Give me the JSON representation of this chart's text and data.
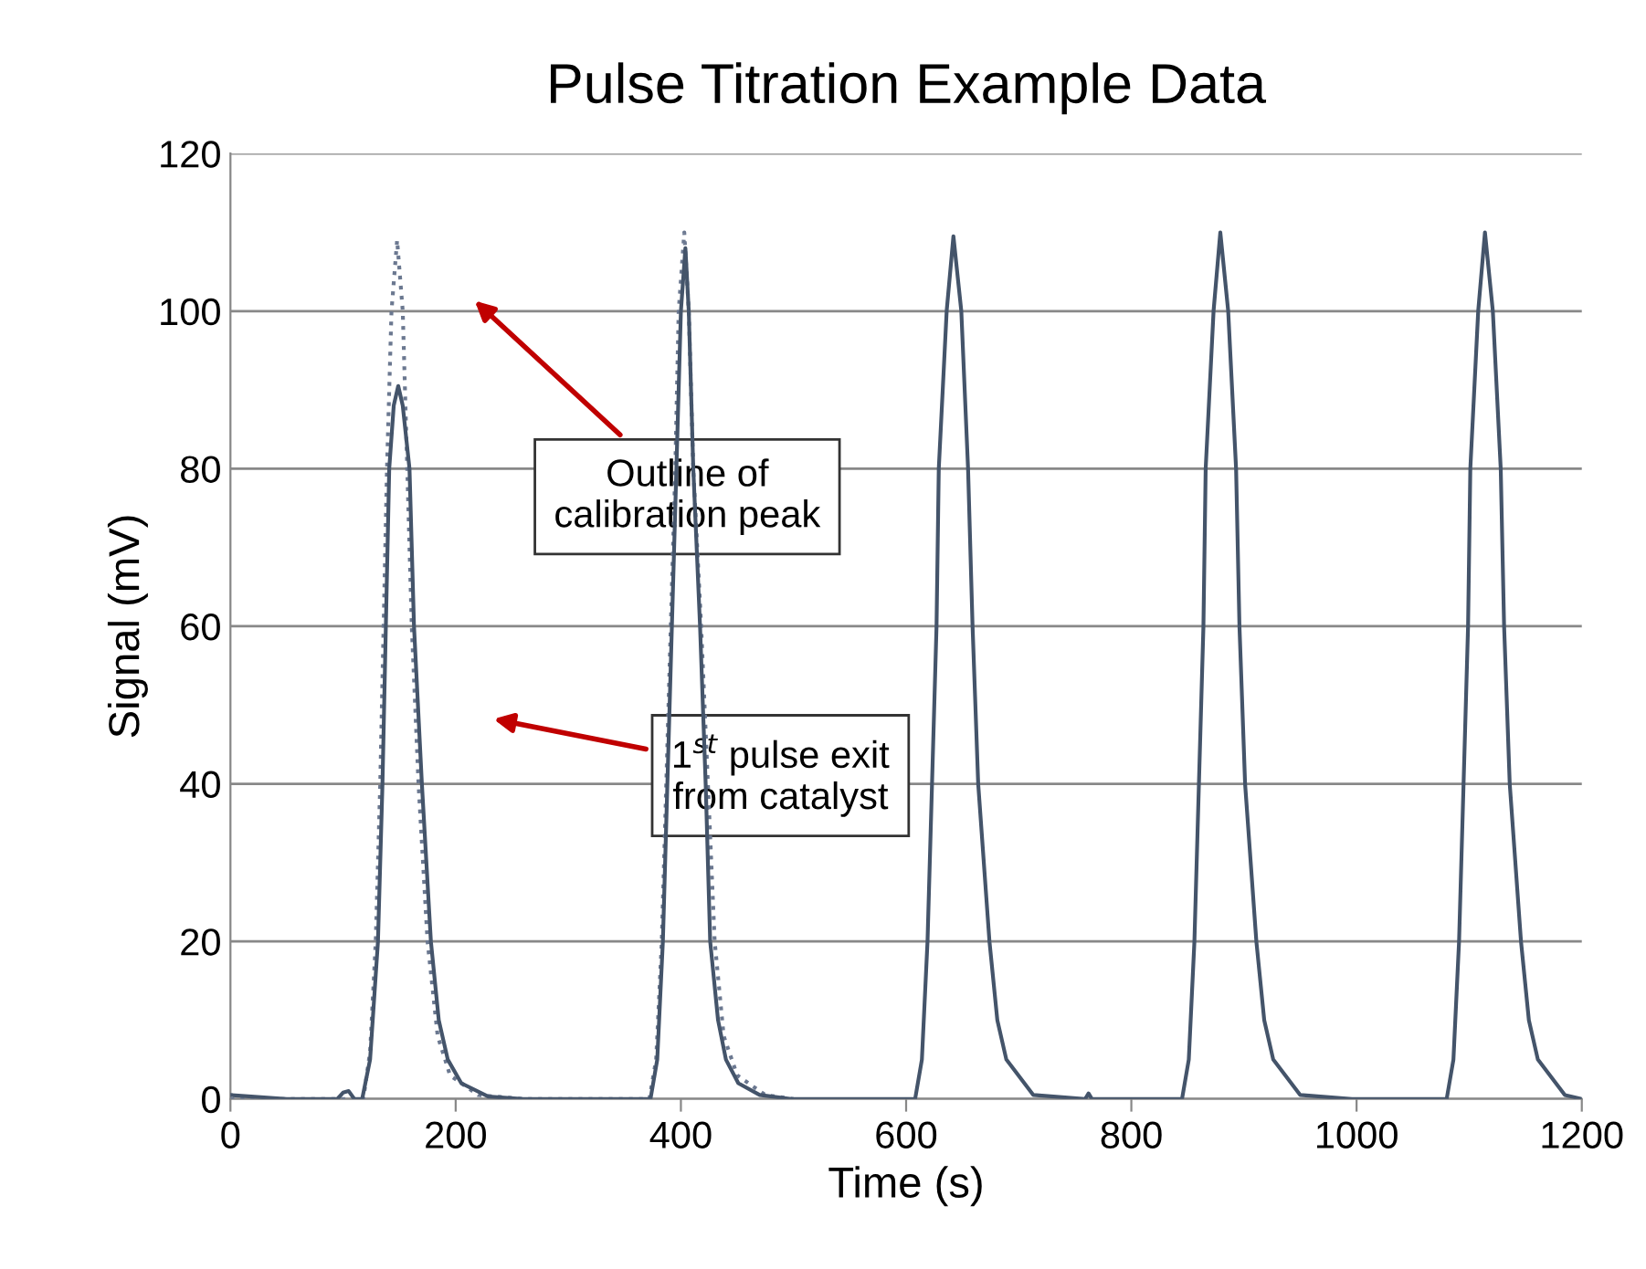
{
  "chart_data": {
    "type": "line",
    "title": "Pulse Titration Example Data",
    "xlabel": "Time (s)",
    "ylabel": "Signal (mV)",
    "xlim": [
      0,
      1200
    ],
    "xticks": [
      0,
      200,
      400,
      600,
      800,
      1000,
      1200
    ],
    "ylim": [
      0,
      120
    ],
    "yticks": [
      0,
      20,
      40,
      60,
      80,
      100,
      120
    ],
    "grid": "y",
    "legend": false,
    "series": [
      {
        "color": "#6b7890",
        "line_style": "dotted",
        "x": [
          0,
          110,
          118,
          124,
          129,
          133,
          136,
          139,
          143,
          148,
          153,
          157,
          161,
          167,
          175,
          184,
          195,
          220,
          260,
          372,
          378,
          383,
          387,
          391,
          395,
          398,
          403,
          407,
          411,
          418,
          424,
          430,
          438,
          450,
          475,
          500
        ],
        "values": [
          0,
          0,
          0,
          6,
          20,
          40,
          60,
          80,
          100,
          109,
          100,
          80,
          60,
          40,
          20,
          8,
          3,
          0.5,
          0,
          0,
          5,
          20,
          40,
          60,
          80,
          100,
          110,
          100,
          80,
          60,
          40,
          20,
          8,
          3,
          0.5,
          0
        ]
      },
      {
        "color": "#44546a",
        "line_style": "solid",
        "x": [
          0,
          50,
          95,
          100,
          105,
          110,
          117,
          124,
          131,
          135,
          138,
          141,
          145,
          149,
          153,
          159,
          163,
          170,
          178,
          185,
          193,
          205,
          229,
          260,
          300,
          373,
          379,
          384,
          388,
          392,
          396,
          400,
          404,
          407,
          411,
          417,
          422,
          426,
          433,
          440,
          451,
          470,
          498,
          540,
          580,
          608,
          614,
          619,
          623,
          627,
          629,
          636,
          642,
          649,
          655,
          659,
          664,
          674,
          681,
          689,
          713,
          759,
          762,
          765,
          800,
          845,
          851,
          856,
          860,
          864,
          866,
          873,
          879,
          886,
          893,
          896,
          901,
          911,
          918,
          926,
          950,
          996,
          1040,
          1080,
          1086,
          1091,
          1095,
          1099,
          1101,
          1108,
          1114,
          1121,
          1128,
          1131,
          1136,
          1146,
          1153,
          1161,
          1185,
          1200
        ],
        "values": [
          0.5,
          0,
          0,
          0.8,
          1,
          0,
          0,
          5,
          20,
          40,
          60,
          80,
          88,
          90.5,
          88,
          80,
          60,
          40,
          20,
          10,
          5,
          2,
          0.3,
          0,
          0,
          0,
          5,
          20,
          40,
          60,
          80,
          100,
          108,
          100,
          80,
          60,
          40,
          20,
          10,
          5,
          2,
          0.5,
          0,
          0,
          0,
          0,
          5,
          20,
          40,
          60,
          80,
          100,
          109.5,
          100,
          80,
          60,
          40,
          20,
          10,
          5,
          0.5,
          0,
          0.7,
          0,
          0,
          0,
          5,
          20,
          40,
          60,
          80,
          100,
          110,
          100,
          80,
          60,
          40,
          20,
          10,
          5,
          0.5,
          0,
          0,
          0,
          5,
          20,
          40,
          60,
          80,
          100,
          110,
          100,
          80,
          60,
          40,
          20,
          10,
          5,
          0.5,
          0
        ]
      }
    ],
    "annotations": [
      "Outline of\ncalibration peak",
      "1$^{st}$ pulse exit\nfrom catalyst"
    ]
  }
}
